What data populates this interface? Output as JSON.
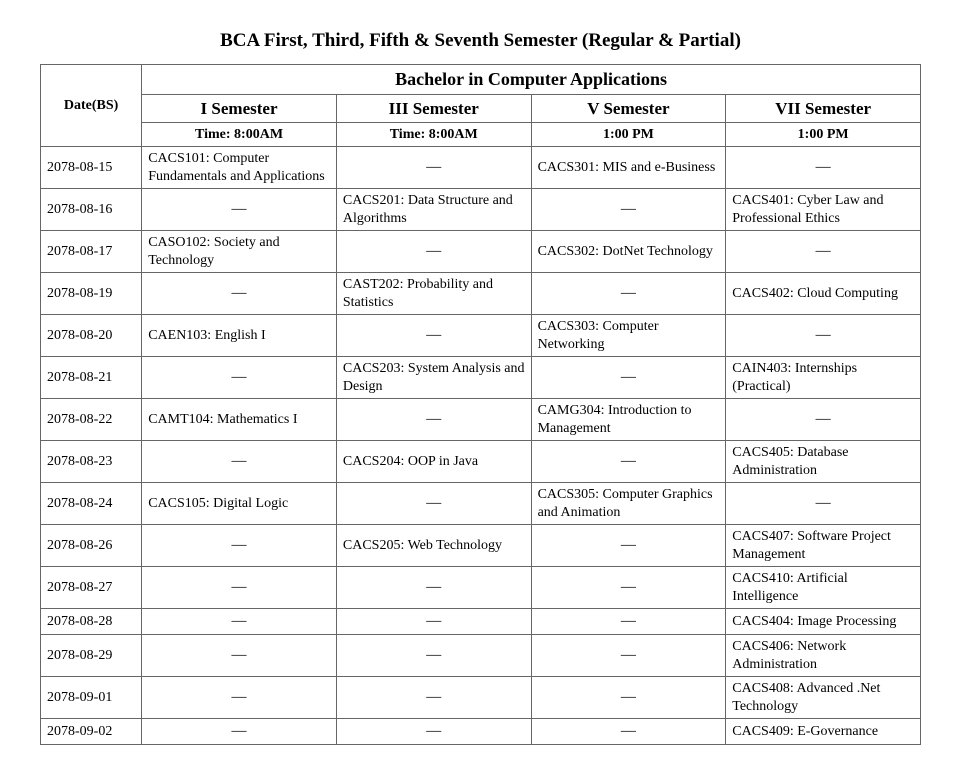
{
  "title": "BCA First, Third, Fifth & Seventh Semester (Regular & Partial)",
  "program": "Bachelor in Computer Applications",
  "date_header": "Date(BS)",
  "semesters": [
    "I Semester",
    "III Semester",
    "V Semester",
    "VII Semester"
  ],
  "times": [
    "Time: 8:00AM",
    "Time: 8:00AM",
    "1:00 PM",
    "1:00 PM"
  ],
  "rows": [
    {
      "date": "2078-08-15",
      "cells": [
        "CACS101: Computer Fundamentals and Applications",
        "",
        "CACS301: MIS and e-Business",
        ""
      ]
    },
    {
      "date": "2078-08-16",
      "cells": [
        "",
        "CACS201: Data Structure and Algorithms",
        "",
        "CACS401: Cyber Law and Professional Ethics"
      ]
    },
    {
      "date": "2078-08-17",
      "cells": [
        "CASO102: Society and Technology",
        "",
        "CACS302: DotNet Technology",
        ""
      ]
    },
    {
      "date": "2078-08-19",
      "cells": [
        "",
        "CAST202: Probability and Statistics",
        "",
        "CACS402: Cloud Computing"
      ]
    },
    {
      "date": "2078-08-20",
      "cells": [
        "CAEN103: English I",
        "",
        "CACS303: Computer Networking",
        ""
      ]
    },
    {
      "date": "2078-08-21",
      "cells": [
        "",
        "CACS203: System Analysis and Design",
        "",
        "CAIN403: Internships (Practical)"
      ]
    },
    {
      "date": "2078-08-22",
      "cells": [
        "CAMT104: Mathematics I",
        "",
        "CAMG304: Introduction to Management",
        ""
      ]
    },
    {
      "date": "2078-08-23",
      "cells": [
        "",
        "CACS204: OOP in Java",
        "",
        "CACS405: Database Administration"
      ]
    },
    {
      "date": "2078-08-24",
      "cells": [
        "CACS105: Digital Logic",
        "",
        "CACS305: Computer Graphics and Animation",
        ""
      ]
    },
    {
      "date": "2078-08-26",
      "cells": [
        "",
        "CACS205: Web Technology",
        "",
        "CACS407: Software Project Management"
      ]
    },
    {
      "date": "2078-08-27",
      "cells": [
        "",
        "",
        "",
        "CACS410: Artificial Intelligence"
      ]
    },
    {
      "date": "2078-08-28",
      "cells": [
        "",
        "",
        "",
        "CACS404: Image Processing"
      ]
    },
    {
      "date": "2078-08-29",
      "cells": [
        "",
        "",
        "",
        "CACS406: Network Administration"
      ]
    },
    {
      "date": "2078-09-01",
      "cells": [
        "",
        "",
        "",
        "CACS408: Advanced .Net Technology"
      ]
    },
    {
      "date": "2078-09-02",
      "cells": [
        "",
        "",
        "",
        "CACS409: E-Governance"
      ]
    }
  ],
  "dash": "—",
  "colors": {
    "border": "#666666",
    "text": "#000000",
    "background": "#ffffff"
  }
}
